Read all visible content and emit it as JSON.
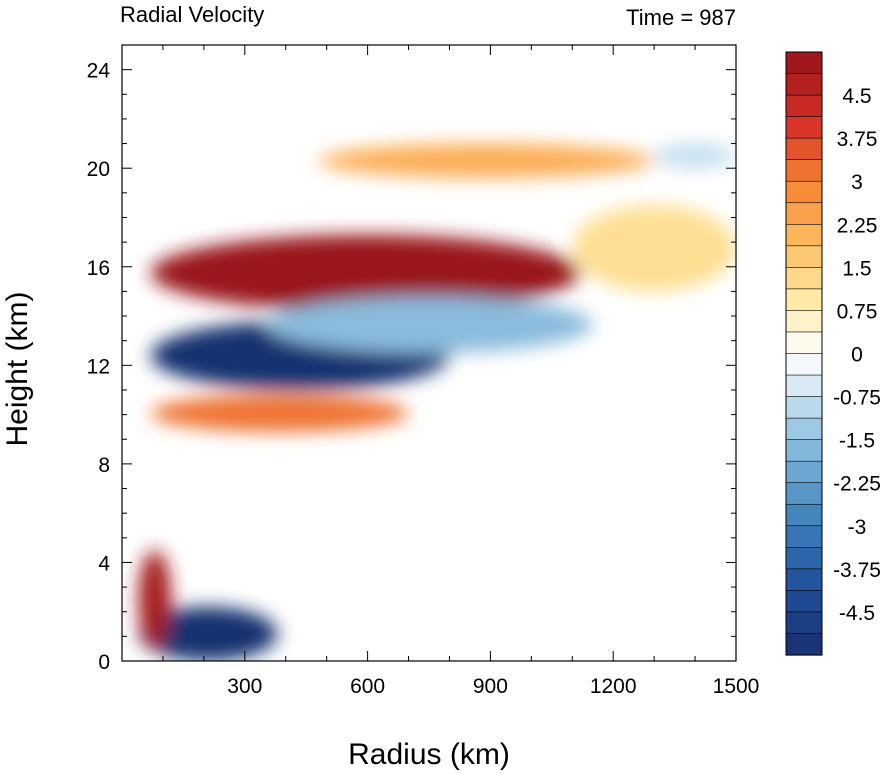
{
  "chart_data": {
    "type": "heatmap",
    "title_left": "Radial Velocity",
    "title_right": "Time = 987",
    "xlabel": "Radius (km)",
    "ylabel": "Height (km)",
    "xlim": [
      0,
      1500
    ],
    "ylim": [
      0,
      25
    ],
    "x_ticks": [
      300,
      600,
      900,
      1200,
      1500
    ],
    "x_tick_labels": [
      "300",
      "600",
      "900",
      "1200",
      "1500"
    ],
    "y_ticks": [
      0,
      4,
      8,
      12,
      16,
      20,
      24
    ],
    "y_tick_labels": [
      "0",
      "4",
      "8",
      "12",
      "16",
      "20",
      "24"
    ],
    "colorbar": {
      "min": -5.25,
      "max": 5.25,
      "step": 0.375,
      "labels": [
        "4.5",
        "3.75",
        "3",
        "2.25",
        "1.5",
        "0.75",
        "0",
        "-0.75",
        "-1.5",
        "-2.25",
        "-3",
        "-3.75",
        "-4.5"
      ],
      "label_values": [
        4.5,
        3.75,
        3,
        2.25,
        1.5,
        0.75,
        0,
        -0.75,
        -1.5,
        -2.25,
        -3,
        -3.75,
        -4.5
      ]
    },
    "features": [
      {
        "feature": "outflow",
        "x": [
          70,
          1120
        ],
        "y": [
          14.2,
          17.3
        ],
        "peak": 5.2
      },
      {
        "feature": "inflow",
        "x": [
          70,
          800
        ],
        "y": [
          11,
          13.8
        ],
        "peak": -5.2
      },
      {
        "feature": "outflow",
        "x": [
          70,
          700
        ],
        "y": [
          9.3,
          10.8
        ],
        "peak": 3.2
      },
      {
        "feature": "inflow",
        "x": [
          40,
          380
        ],
        "y": [
          0,
          2.2
        ],
        "peak": -5.2
      },
      {
        "feature": "outflow",
        "x": [
          40,
          120
        ],
        "y": [
          0.5,
          4.5
        ],
        "peak": 5.0
      },
      {
        "feature": "outflow",
        "x": [
          480,
          1300
        ],
        "y": [
          19.6,
          21
        ],
        "peak": 2.2
      },
      {
        "feature": "outflow",
        "x": [
          1100,
          1500
        ],
        "y": [
          15,
          18.5
        ],
        "peak": 1.2
      },
      {
        "feature": "inflow",
        "x": [
          350,
          1150
        ],
        "y": [
          12.5,
          14.8
        ],
        "peak": -1.6
      },
      {
        "feature": "inflow",
        "x": [
          1300,
          1500
        ],
        "y": [
          20,
          21
        ],
        "peak": -0.8
      }
    ]
  }
}
